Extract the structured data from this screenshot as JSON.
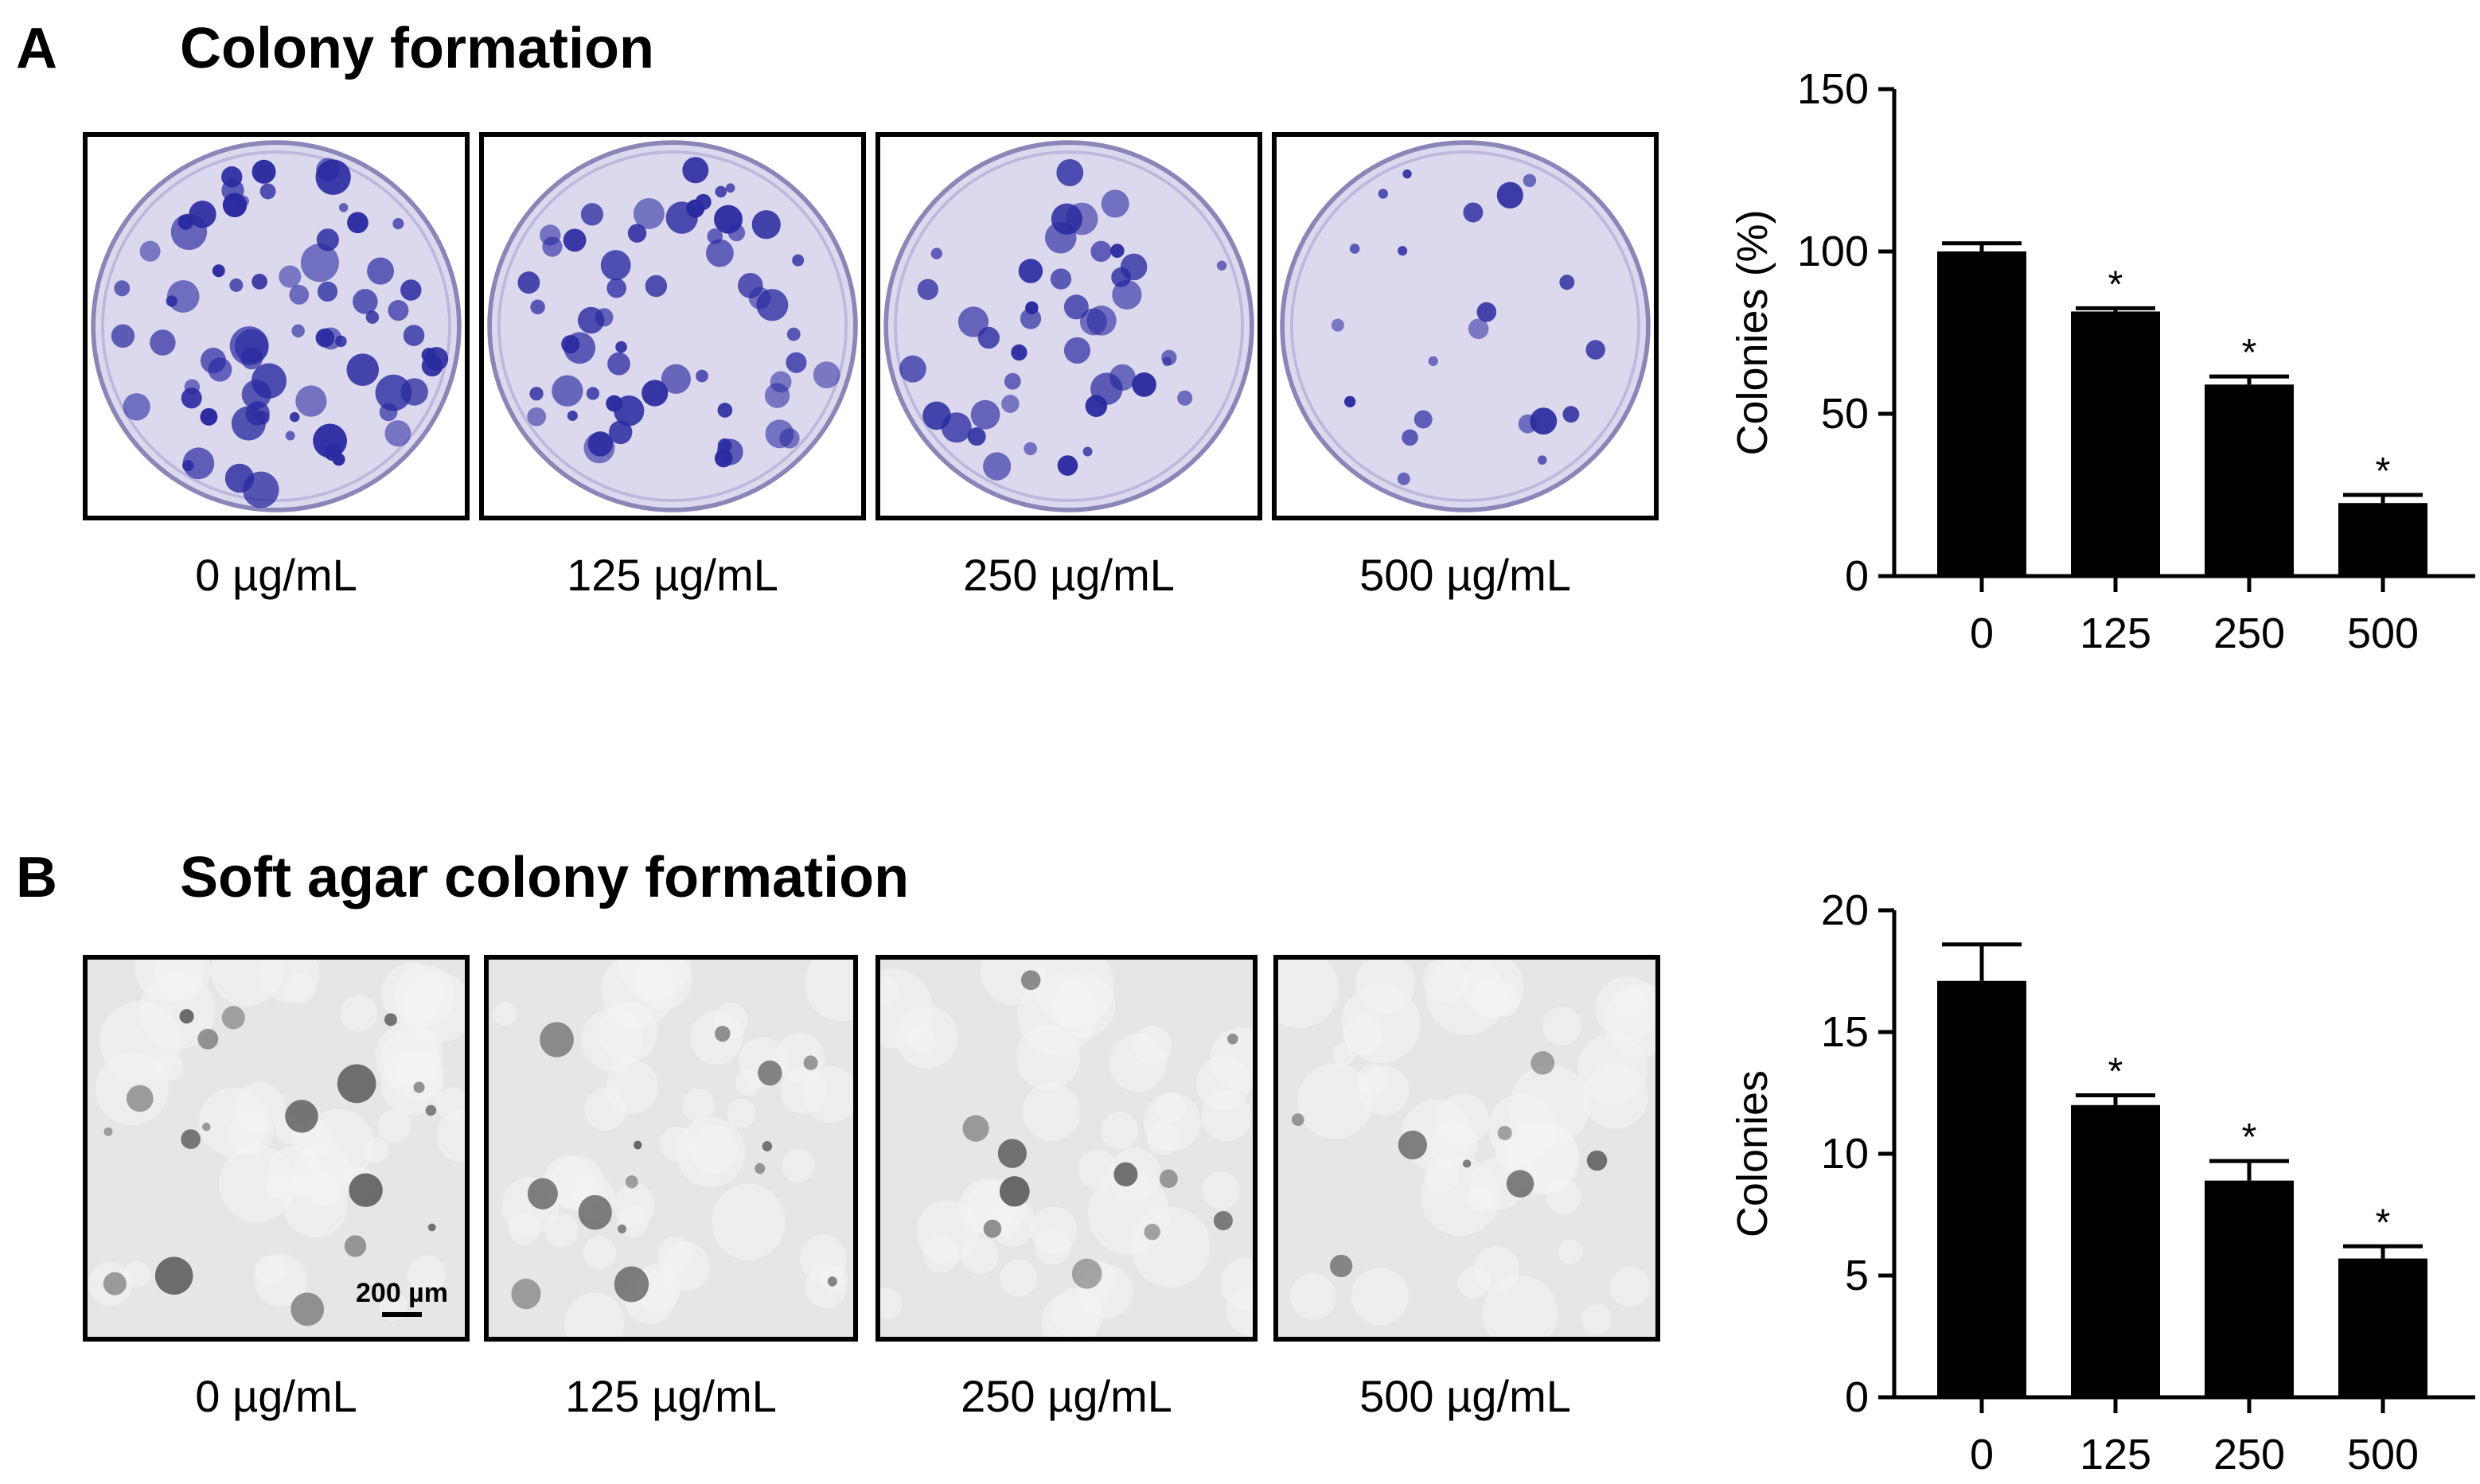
{
  "panels": [
    {
      "letter": "A",
      "title": "Colony formation",
      "captions": [
        "0 µg/mL",
        "125 µg/mL",
        "250 µg/mL",
        "500 µg/mL"
      ]
    },
    {
      "letter": "B",
      "title": "Soft agar colony formation",
      "captions": [
        "0 µg/mL",
        "125 µg/mL",
        "250 µg/mL",
        "500 µg/mL"
      ],
      "scale_bar": "200 µm"
    }
  ],
  "colors": {
    "bar": "#000000",
    "crystal_violet": "#2a2aa0",
    "dish": "#dcd8ee",
    "agar": "#e6e6e6",
    "colony_gray": "#5a5a5a"
  },
  "chart_data": [
    {
      "type": "bar",
      "categories": [
        "0",
        "125",
        "250",
        "500"
      ],
      "values": [
        100,
        81.5,
        59,
        22.5
      ],
      "errors": [
        2.5,
        1,
        2.5,
        2.5
      ],
      "significance": [
        "",
        "*",
        "*",
        "*"
      ],
      "ylabel": "Colonies (%)",
      "ylim": [
        0,
        150
      ],
      "yticks": [
        0,
        50,
        100,
        150
      ]
    },
    {
      "type": "bar",
      "categories": [
        "0",
        "125",
        "250",
        "500"
      ],
      "values": [
        17.1,
        12.0,
        8.9,
        5.7
      ],
      "errors": [
        1.5,
        0.4,
        0.8,
        0.5
      ],
      "significance": [
        "",
        "*",
        "*",
        "*"
      ],
      "ylabel": "Colonies",
      "ylim": [
        0,
        20
      ],
      "yticks": [
        0,
        5,
        10,
        15,
        20
      ]
    }
  ]
}
